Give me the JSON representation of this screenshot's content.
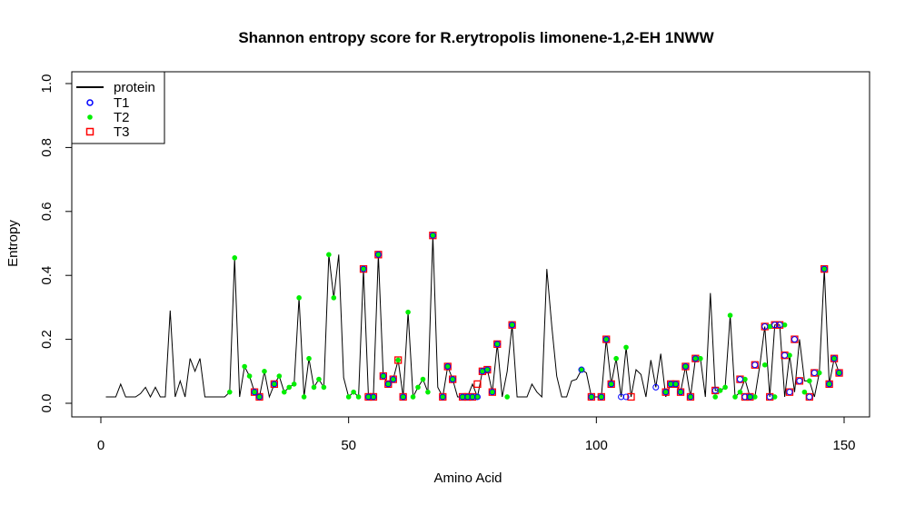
{
  "chart_data": {
    "type": "line",
    "title": "Shannon entropy score for  R.erytropolis limonene-1,2-EH 1NWW",
    "xlabel": "Amino Acid",
    "ylabel": "Entropy",
    "xlim": [
      0,
      150
    ],
    "ylim": [
      0,
      1.0
    ],
    "x_ticks": [
      "0",
      "50",
      "100",
      "150"
    ],
    "y_ticks": [
      "0.0",
      "0.2",
      "0.4",
      "0.6",
      "0.8",
      "1.0"
    ],
    "legend_position": "top-left",
    "legend": [
      "protein",
      "T1",
      "T2",
      "T3"
    ],
    "colors": {
      "protein": "#000000",
      "T1": "#0000ff",
      "T2": "#00ee00",
      "T3": "#ff0000"
    },
    "protein": {
      "x": [
        1,
        2,
        3,
        4,
        5,
        6,
        7,
        8,
        9,
        10,
        11,
        12,
        13,
        14,
        15,
        16,
        17,
        18,
        19,
        20,
        21,
        22,
        23,
        24,
        25,
        26,
        27,
        28,
        29,
        30,
        31,
        32,
        33,
        34,
        35,
        36,
        37,
        38,
        39,
        40,
        41,
        42,
        43,
        44,
        45,
        46,
        47,
        48,
        49,
        50,
        51,
        52,
        53,
        54,
        55,
        56,
        57,
        58,
        59,
        60,
        61,
        62,
        63,
        64,
        65,
        66,
        67,
        68,
        69,
        70,
        71,
        72,
        73,
        74,
        75,
        76,
        77,
        78,
        79,
        80,
        81,
        82,
        83,
        84,
        85,
        86,
        87,
        88,
        89,
        90,
        91,
        92,
        93,
        94,
        95,
        96,
        97,
        98,
        99,
        100,
        101,
        102,
        103,
        104,
        105,
        106,
        107,
        108,
        109,
        110,
        111,
        112,
        113,
        114,
        115,
        116,
        117,
        118,
        119,
        120,
        121,
        122,
        123,
        124,
        125,
        126,
        127,
        128,
        129,
        130,
        131,
        132,
        133,
        134,
        135,
        136,
        137,
        138,
        139,
        140,
        141,
        142,
        143,
        144,
        145,
        146,
        147,
        148,
        149
      ],
      "y": [
        0.02,
        0.02,
        0.02,
        0.06,
        0.02,
        0.02,
        0.02,
        0.03,
        0.05,
        0.02,
        0.05,
        0.02,
        0.02,
        0.29,
        0.02,
        0.07,
        0.02,
        0.14,
        0.1,
        0.14,
        0.02,
        0.02,
        0.02,
        0.02,
        0.02,
        0.035,
        0.455,
        0.02,
        0.115,
        0.085,
        0.035,
        0.02,
        0.1,
        0.02,
        0.06,
        0.085,
        0.035,
        0.05,
        0.06,
        0.33,
        0.02,
        0.14,
        0.05,
        0.075,
        0.05,
        0.465,
        0.33,
        0.465,
        0.08,
        0.02,
        0.035,
        0.02,
        0.42,
        0.02,
        0.02,
        0.465,
        0.085,
        0.06,
        0.075,
        0.135,
        0.02,
        0.285,
        0.02,
        0.05,
        0.075,
        0.035,
        0.525,
        0.05,
        0.02,
        0.115,
        0.075,
        0.02,
        0.02,
        0.02,
        0.06,
        0.02,
        0.1,
        0.105,
        0.035,
        0.185,
        0.02,
        0.1,
        0.245,
        0.02,
        0.02,
        0.02,
        0.06,
        0.035,
        0.02,
        0.42,
        0.24,
        0.085,
        0.02,
        0.02,
        0.07,
        0.075,
        0.105,
        0.095,
        0.02,
        0.02,
        0.02,
        0.2,
        0.06,
        0.14,
        0.02,
        0.175,
        0.02,
        0.105,
        0.09,
        0.02,
        0.135,
        0.05,
        0.155,
        0.02,
        0.06,
        0.06,
        0.035,
        0.115,
        0.02,
        0.14,
        0.14,
        0.02,
        0.345,
        0.04,
        0.04,
        0.05,
        0.275,
        0.02,
        0.035,
        0.075,
        0.02,
        0.02,
        0.12,
        0.24,
        0.02,
        0.245,
        0.245,
        0.02,
        0.15,
        0.035,
        0.2,
        0.07,
        0.07,
        0.02,
        0.095,
        0.42,
        0.06,
        0.14,
        0.095
      ]
    },
    "T1": {
      "x": [
        31,
        32,
        35,
        53,
        54,
        55,
        56,
        57,
        58,
        59,
        61,
        67,
        69,
        70,
        71,
        73,
        74,
        75,
        76,
        77,
        78,
        79,
        80,
        83,
        97,
        99,
        101,
        102,
        103,
        105,
        106,
        112,
        114,
        115,
        116,
        117,
        118,
        119,
        120,
        124,
        129,
        130,
        131,
        132,
        134,
        135,
        136,
        137,
        138,
        139,
        140,
        141,
        143,
        144,
        146,
        147,
        148,
        149
      ],
      "y": [
        0.035,
        0.02,
        0.06,
        0.42,
        0.02,
        0.02,
        0.465,
        0.085,
        0.06,
        0.075,
        0.02,
        0.525,
        0.02,
        0.115,
        0.075,
        0.02,
        0.02,
        0.02,
        0.02,
        0.1,
        0.105,
        0.035,
        0.185,
        0.245,
        0.105,
        0.02,
        0.02,
        0.2,
        0.06,
        0.02,
        0.02,
        0.05,
        0.035,
        0.06,
        0.06,
        0.035,
        0.115,
        0.02,
        0.14,
        0.04,
        0.075,
        0.02,
        0.02,
        0.12,
        0.24,
        0.02,
        0.245,
        0.245,
        0.15,
        0.035,
        0.2,
        0.07,
        0.02,
        0.095,
        0.42,
        0.06,
        0.14,
        0.095
      ]
    },
    "T2": {
      "x": [
        26,
        27,
        29,
        30,
        31,
        32,
        33,
        35,
        36,
        37,
        38,
        39,
        40,
        41,
        42,
        43,
        44,
        45,
        46,
        47,
        50,
        51,
        52,
        53,
        54,
        55,
        56,
        57,
        58,
        59,
        60,
        61,
        62,
        63,
        64,
        65,
        66,
        67,
        69,
        70,
        71,
        73,
        74,
        75,
        76,
        77,
        78,
        79,
        80,
        82,
        83,
        97,
        99,
        101,
        102,
        103,
        104,
        106,
        114,
        115,
        116,
        117,
        118,
        119,
        120,
        121,
        124,
        125,
        126,
        127,
        128,
        129,
        130,
        131,
        132,
        134,
        135,
        136,
        138,
        139,
        142,
        143,
        145,
        146,
        147,
        148,
        149
      ],
      "y": [
        0.035,
        0.455,
        0.115,
        0.085,
        0.035,
        0.02,
        0.1,
        0.06,
        0.085,
        0.035,
        0.05,
        0.06,
        0.33,
        0.02,
        0.14,
        0.05,
        0.075,
        0.05,
        0.465,
        0.33,
        0.02,
        0.035,
        0.02,
        0.42,
        0.02,
        0.02,
        0.465,
        0.085,
        0.06,
        0.075,
        0.135,
        0.02,
        0.285,
        0.02,
        0.05,
        0.075,
        0.035,
        0.525,
        0.02,
        0.115,
        0.075,
        0.02,
        0.02,
        0.02,
        0.02,
        0.1,
        0.105,
        0.035,
        0.185,
        0.02,
        0.245,
        0.105,
        0.02,
        0.02,
        0.2,
        0.06,
        0.14,
        0.175,
        0.035,
        0.06,
        0.06,
        0.035,
        0.115,
        0.02,
        0.14,
        0.14,
        0.02,
        0.04,
        0.05,
        0.275,
        0.02,
        0.035,
        0.075,
        0.02,
        0.02,
        0.12,
        0.24,
        0.02,
        0.245,
        0.15,
        0.035,
        0.07,
        0.095,
        0.42,
        0.06,
        0.14,
        0.095
      ]
    },
    "T3": {
      "x": [
        31,
        32,
        35,
        53,
        54,
        55,
        56,
        57,
        58,
        59,
        60,
        61,
        67,
        69,
        70,
        71,
        73,
        74,
        75,
        76,
        77,
        78,
        79,
        80,
        83,
        99,
        101,
        102,
        103,
        107,
        114,
        115,
        116,
        117,
        118,
        119,
        120,
        124,
        129,
        130,
        131,
        132,
        134,
        135,
        136,
        137,
        138,
        139,
        140,
        141,
        143,
        144,
        146,
        147,
        148,
        149
      ],
      "y": [
        0.035,
        0.02,
        0.06,
        0.42,
        0.02,
        0.02,
        0.465,
        0.085,
        0.06,
        0.075,
        0.135,
        0.02,
        0.525,
        0.02,
        0.115,
        0.075,
        0.02,
        0.02,
        0.02,
        0.06,
        0.1,
        0.105,
        0.035,
        0.185,
        0.245,
        0.02,
        0.02,
        0.2,
        0.06,
        0.02,
        0.035,
        0.06,
        0.06,
        0.035,
        0.115,
        0.02,
        0.14,
        0.04,
        0.075,
        0.02,
        0.02,
        0.12,
        0.24,
        0.02,
        0.245,
        0.245,
        0.15,
        0.035,
        0.2,
        0.07,
        0.02,
        0.095,
        0.42,
        0.06,
        0.14,
        0.095
      ]
    }
  }
}
